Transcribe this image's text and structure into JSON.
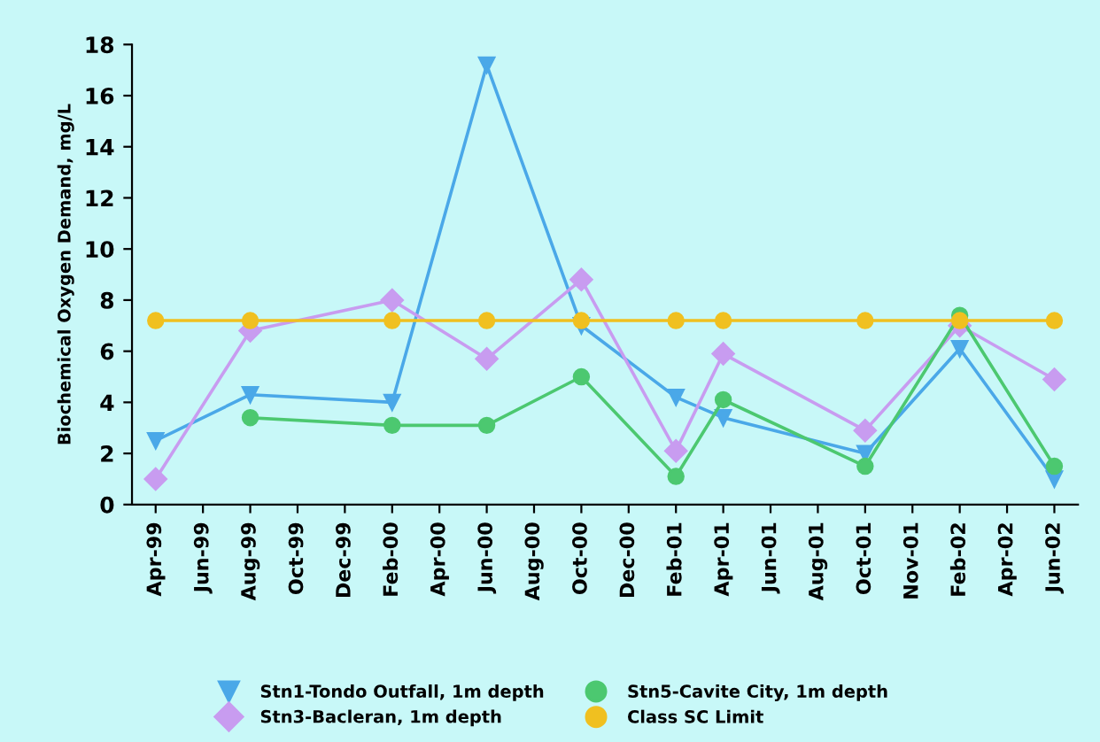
{
  "chart_data": {
    "type": "line",
    "ylabel": "Biochemical Oxygen Demand, mg/L",
    "categories": [
      "Apr-99",
      "Jun-99",
      "Aug-99",
      "Oct-99",
      "Dec-99",
      "Feb-00",
      "Apr-00",
      "Jun-00",
      "Aug-00",
      "Oct-00",
      "Dec-00",
      "Feb-01",
      "Apr-01",
      "Jun-01",
      "Aug-01",
      "Oct-01",
      "Nov-01",
      "Feb-02",
      "Apr-02",
      "Jun-02"
    ],
    "series": [
      {
        "name": "Stn1-Tondo Outfall, 1m depth",
        "color": "#4aa8e8",
        "marker": "triangle",
        "values": [
          2.5,
          null,
          4.3,
          null,
          null,
          4.0,
          null,
          17.2,
          null,
          7.0,
          null,
          4.2,
          3.4,
          null,
          null,
          2.0,
          null,
          6.1,
          null,
          1.0
        ]
      },
      {
        "name": "Stn3-Bacleran, 1m depth",
        "color": "#c89cf0",
        "marker": "diamond",
        "values": [
          1.0,
          null,
          6.8,
          null,
          null,
          8.0,
          null,
          5.7,
          null,
          8.8,
          null,
          2.1,
          5.9,
          null,
          null,
          2.9,
          null,
          7.0,
          null,
          4.9
        ]
      },
      {
        "name": "Stn5-Cavite City, 1m depth",
        "color": "#4cc870",
        "marker": "circle",
        "values": [
          null,
          null,
          3.4,
          null,
          null,
          3.1,
          null,
          3.1,
          null,
          5.0,
          null,
          1.1,
          4.1,
          null,
          null,
          1.5,
          null,
          7.4,
          null,
          1.5
        ]
      },
      {
        "name": "Class SC Limit",
        "color": "#f0c020",
        "marker": "circle",
        "values": [
          7.2,
          null,
          7.2,
          null,
          null,
          7.2,
          null,
          7.2,
          null,
          7.2,
          null,
          7.2,
          7.2,
          null,
          null,
          7.2,
          null,
          7.2,
          null,
          7.2
        ]
      }
    ],
    "ylim": [
      0,
      18
    ],
    "yticks": [
      0,
      2,
      4,
      6,
      8,
      10,
      12,
      14,
      16,
      18
    ],
    "grid": false,
    "legend": "bottom",
    "line_style": "solid"
  }
}
